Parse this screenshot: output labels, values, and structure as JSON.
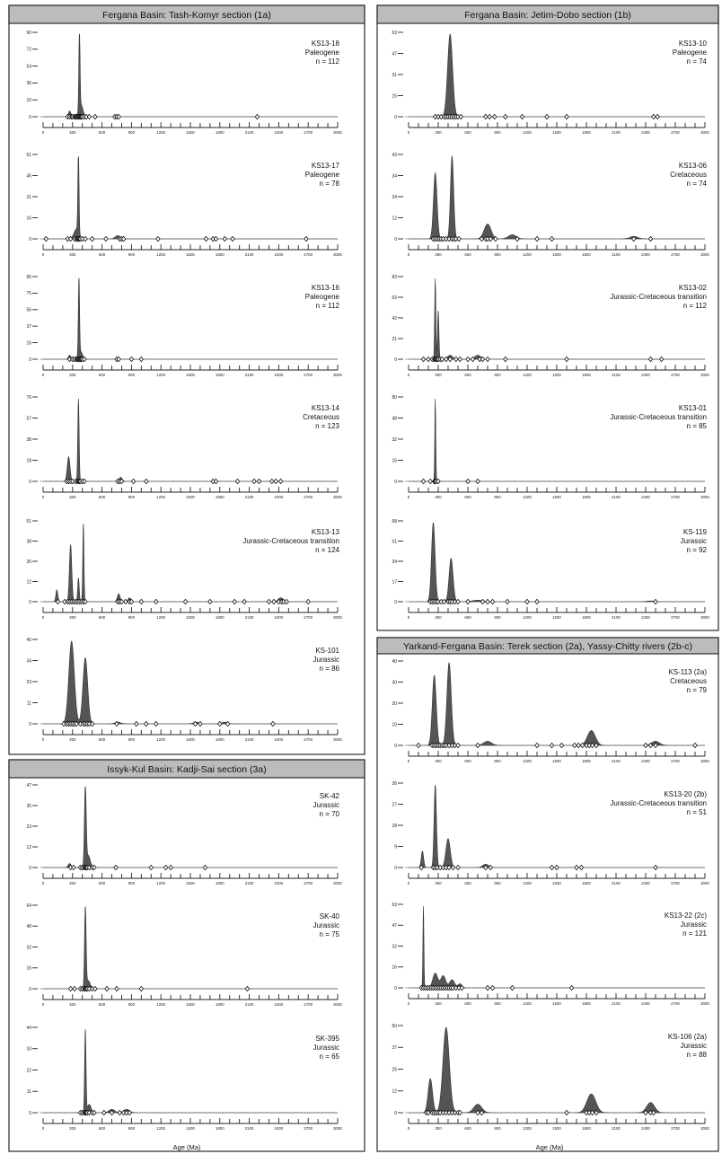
{
  "figure": {
    "groups": [
      {
        "title": "Fergana Basin: Tash-Komyr section (1a)"
      },
      {
        "title": "Fergana Basin: Jetim-Dobo section (1b)"
      },
      {
        "title": "Yarkand-Fergana Basin: Terek section (2a), Yassy-Chitty rivers (2b-c)"
      },
      {
        "title": "Issyk-Kul Basin: Kadji-Sai section (3a)"
      }
    ],
    "x_axis_title": "Age (Ma)"
  },
  "chart_data": [
    {
      "type": "area",
      "sample": "KS13-18",
      "period": "Paleogene",
      "n_label": "n = 112",
      "yticks": [
        "0",
        "16",
        "36",
        "54",
        "72",
        "90"
      ],
      "xlim": [
        0,
        3000
      ],
      "xticks": [
        "0",
        "300",
        "600",
        "900",
        "1200",
        "1500",
        "1800",
        "2100",
        "2400",
        "2700",
        "3000"
      ],
      "peaks": [
        [
          270,
          0.07,
          12
        ],
        [
          370,
          1.0,
          6
        ],
        [
          385,
          0.15,
          20
        ]
      ],
      "ages": [
        250,
        270,
        290,
        300,
        320,
        330,
        340,
        350,
        360,
        370,
        375,
        380,
        390,
        400,
        420,
        440,
        470,
        530,
        730,
        750,
        770,
        2180
      ]
    },
    {
      "type": "area",
      "sample": "KS13-17",
      "period": "Paleogene",
      "n_label": "n = 78",
      "yticks": [
        "0",
        "16",
        "31",
        "45",
        "61"
      ],
      "xlim": [
        0,
        3000
      ],
      "xticks": [
        "0",
        "300",
        "600",
        "900",
        "1200",
        "1500",
        "1800",
        "2100",
        "2400",
        "2700",
        "3000"
      ],
      "peaks": [
        [
          360,
          1.0,
          6
        ],
        [
          340,
          0.12,
          25
        ],
        [
          760,
          0.04,
          25
        ]
      ],
      "ages": [
        30,
        250,
        280,
        320,
        340,
        350,
        360,
        370,
        380,
        400,
        430,
        500,
        640,
        780,
        800,
        820,
        1170,
        1660,
        1730,
        1760,
        1850,
        1930,
        2680
      ]
    },
    {
      "type": "area",
      "sample": "KS13-16",
      "period": "Paleogene",
      "n_label": "n = 112",
      "yticks": [
        "0",
        "16",
        "37",
        "56",
        "75",
        "95"
      ],
      "xlim": [
        0,
        3000
      ],
      "xticks": [
        "0",
        "300",
        "600",
        "900",
        "1200",
        "1500",
        "1800",
        "2100",
        "2400",
        "2700",
        "3000"
      ],
      "peaks": [
        [
          270,
          0.05,
          12
        ],
        [
          365,
          1.0,
          6
        ],
        [
          380,
          0.1,
          20
        ]
      ],
      "ages": [
        270,
        300,
        320,
        340,
        350,
        360,
        370,
        380,
        390,
        400,
        420,
        750,
        770,
        900,
        1000
      ]
    },
    {
      "type": "area",
      "sample": "KS13-14",
      "period": "Cretaceous",
      "n_label": "n = 123",
      "yticks": [
        "0",
        "18",
        "38",
        "57",
        "76"
      ],
      "xlim": [
        0,
        3000
      ],
      "xticks": [
        "0",
        "300",
        "600",
        "900",
        "1200",
        "1500",
        "1800",
        "2100",
        "2400",
        "2700",
        "3000"
      ],
      "peaks": [
        [
          260,
          0.3,
          14
        ],
        [
          360,
          1.0,
          7
        ],
        [
          790,
          0.05,
          15
        ]
      ],
      "ages": [
        240,
        260,
        280,
        300,
        330,
        350,
        360,
        370,
        380,
        400,
        420,
        760,
        780,
        800,
        920,
        1050,
        1730,
        1760,
        1980,
        2150,
        2200,
        2330,
        2370,
        2420
      ]
    },
    {
      "type": "area",
      "sample": "KS13-13",
      "period": "Jurassic-Cretaceous transition",
      "n_label": "n = 124",
      "yticks": [
        "0",
        "12",
        "26",
        "38",
        "51"
      ],
      "xlim": [
        0,
        3000
      ],
      "xticks": [
        "0",
        "300",
        "600",
        "900",
        "1200",
        "1500",
        "1800",
        "2100",
        "2400",
        "2700",
        "3000"
      ],
      "peaks": [
        [
          140,
          0.15,
          10
        ],
        [
          280,
          0.72,
          12
        ],
        [
          360,
          0.3,
          8
        ],
        [
          410,
          1.0,
          6
        ],
        [
          770,
          0.1,
          14
        ],
        [
          880,
          0.05,
          14
        ],
        [
          2420,
          0.05,
          25
        ]
      ],
      "ages": [
        150,
        220,
        250,
        270,
        290,
        310,
        330,
        350,
        370,
        390,
        410,
        430,
        760,
        780,
        800,
        840,
        880,
        900,
        1000,
        1150,
        1450,
        1700,
        1950,
        2050,
        2300,
        2350,
        2400,
        2430,
        2450,
        2480,
        2700
      ]
    },
    {
      "type": "area",
      "sample": "KS-101",
      "period": "Jurassic",
      "n_label": "n = 86",
      "yticks": [
        "0",
        "11",
        "23",
        "34",
        "45"
      ],
      "xlim": [
        0,
        3000
      ],
      "xticks": [
        "0",
        "300",
        "600",
        "900",
        "1200",
        "1500",
        "1800",
        "2100",
        "2400",
        "2700",
        "3000"
      ],
      "peaks": [
        [
          290,
          1.0,
          28
        ],
        [
          430,
          0.8,
          24
        ],
        [
          760,
          0.02,
          30
        ],
        [
          1560,
          0.02,
          30
        ],
        [
          1850,
          0.02,
          30
        ]
      ],
      "ages": [
        210,
        240,
        260,
        280,
        300,
        320,
        340,
        380,
        410,
        430,
        450,
        470,
        500,
        750,
        950,
        1050,
        1150,
        1550,
        1600,
        1800,
        1880,
        2340
      ]
    },
    {
      "type": "area",
      "sample": "KS13-10",
      "period": "Paleogene",
      "n_label": "n = 74",
      "yticks": [
        "0",
        "15",
        "31",
        "47",
        "63"
      ],
      "xlim": [
        0,
        3000
      ],
      "xticks": [
        "0",
        "300",
        "600",
        "900",
        "1200",
        "1500",
        "1800",
        "2100",
        "2400",
        "2700",
        "3000"
      ],
      "peaks": [
        [
          420,
          1.0,
          25
        ]
      ],
      "ages": [
        270,
        300,
        330,
        360,
        380,
        400,
        420,
        440,
        460,
        480,
        500,
        530,
        780,
        820,
        870,
        980,
        1150,
        1400,
        1600,
        2480,
        2520
      ]
    },
    {
      "type": "area",
      "sample": "KS13-06",
      "period": "Cretaceous",
      "n_label": "n = 74",
      "yticks": [
        "0",
        "12",
        "24",
        "34",
        "43"
      ],
      "xlim": [
        0,
        3000
      ],
      "xticks": [
        "0",
        "300",
        "600",
        "900",
        "1200",
        "1500",
        "1800",
        "2100",
        "2400",
        "2700",
        "3000"
      ],
      "peaks": [
        [
          270,
          0.8,
          18
        ],
        [
          440,
          1.0,
          16
        ],
        [
          800,
          0.18,
          35
        ],
        [
          1050,
          0.05,
          40
        ],
        [
          2280,
          0.03,
          40
        ]
      ],
      "ages": [
        250,
        270,
        290,
        310,
        330,
        350,
        380,
        410,
        440,
        460,
        480,
        510,
        740,
        780,
        800,
        830,
        880,
        1100,
        1300,
        1450,
        2280,
        2450
      ]
    },
    {
      "type": "area",
      "sample": "KS13-02",
      "period": "Jurassic-Cretaceous transition",
      "n_label": "n = 112",
      "yticks": [
        "0",
        "21",
        "42",
        "63",
        "83"
      ],
      "xlim": [
        0,
        3000
      ],
      "xticks": [
        "0",
        "300",
        "600",
        "900",
        "1200",
        "1500",
        "1800",
        "2100",
        "2400",
        "2700",
        "3000"
      ],
      "peaks": [
        [
          270,
          1.0,
          6
        ],
        [
          300,
          0.6,
          7
        ],
        [
          420,
          0.05,
          25
        ],
        [
          700,
          0.05,
          30
        ]
      ],
      "ages": [
        150,
        200,
        240,
        260,
        270,
        280,
        290,
        300,
        320,
        340,
        380,
        420,
        480,
        520,
        600,
        650,
        720,
        750,
        800,
        980,
        1600,
        2450,
        2560
      ]
    },
    {
      "type": "area",
      "sample": "KS13-01",
      "period": "Jurassic-Cretaceous transition",
      "n_label": "n = 85",
      "yticks": [
        "0",
        "16",
        "32",
        "48",
        "80"
      ],
      "xlim": [
        0,
        3000
      ],
      "xticks": [
        "0",
        "300",
        "600",
        "900",
        "1200",
        "1500",
        "1800",
        "2100",
        "2400",
        "2700",
        "3000"
      ],
      "peaks": [
        [
          270,
          1.0,
          5
        ]
      ],
      "ages": [
        150,
        220,
        260,
        270,
        280,
        300,
        600,
        700
      ]
    },
    {
      "type": "area",
      "sample": "KS-119",
      "period": "Jurassic",
      "n_label": "n = 92",
      "yticks": [
        "0",
        "17",
        "34",
        "51",
        "68"
      ],
      "xlim": [
        0,
        3000
      ],
      "xticks": [
        "0",
        "300",
        "600",
        "900",
        "1200",
        "1500",
        "1800",
        "2100",
        "2400",
        "2700",
        "3000"
      ],
      "peaks": [
        [
          250,
          1.0,
          18
        ],
        [
          430,
          0.55,
          20
        ],
        [
          700,
          0.02,
          50
        ],
        [
          2450,
          0.01,
          40
        ]
      ],
      "ages": [
        220,
        240,
        260,
        280,
        300,
        330,
        360,
        400,
        420,
        440,
        470,
        500,
        600,
        750,
        800,
        850,
        1000,
        1200,
        1300,
        2500
      ]
    },
    {
      "type": "area",
      "sample": "KS-113 (2a)",
      "period": "Cretaceous",
      "n_label": "n = 79",
      "yticks": [
        "0",
        "10",
        "20",
        "30",
        "40"
      ],
      "xlim": [
        0,
        3000
      ],
      "xticks": [
        "0",
        "300",
        "600",
        "900",
        "1200",
        "1500",
        "1800",
        "2100",
        "2400",
        "2700",
        "3000"
      ],
      "peaks": [
        [
          260,
          0.85,
          20
        ],
        [
          410,
          1.0,
          22
        ],
        [
          800,
          0.05,
          40
        ],
        [
          1850,
          0.18,
          40
        ],
        [
          2500,
          0.05,
          40
        ]
      ],
      "ages": [
        100,
        240,
        260,
        280,
        300,
        320,
        340,
        360,
        380,
        410,
        440,
        470,
        500,
        700,
        1300,
        1450,
        1550,
        1680,
        1720,
        1760,
        1800,
        1830,
        1860,
        1900,
        2400,
        2450,
        2500,
        2900
      ]
    },
    {
      "type": "area",
      "sample": "KS13-20 (2b)",
      "period": "Jurassic-Cretaceous transition",
      "n_label": "n = 51",
      "yticks": [
        "0",
        "9",
        "18",
        "27",
        "36"
      ],
      "xlim": [
        0,
        3000
      ],
      "xticks": [
        "0",
        "300",
        "600",
        "900",
        "1200",
        "1500",
        "1800",
        "2100",
        "2400",
        "2700",
        "3000"
      ],
      "peaks": [
        [
          140,
          0.2,
          12
        ],
        [
          270,
          1.0,
          12
        ],
        [
          400,
          0.35,
          22
        ],
        [
          780,
          0.04,
          30
        ]
      ],
      "ages": [
        130,
        250,
        270,
        290,
        320,
        350,
        380,
        410,
        450,
        500,
        780,
        830,
        1450,
        1500,
        1700,
        1750,
        2500
      ]
    },
    {
      "type": "area",
      "sample": "KS13-22 (2c)",
      "period": "Jurassic",
      "n_label": "n = 121",
      "yticks": [
        "0",
        "16",
        "32",
        "47",
        "63"
      ],
      "xlim": [
        0,
        3000
      ],
      "xticks": [
        "0",
        "300",
        "600",
        "900",
        "1200",
        "1500",
        "1800",
        "2100",
        "2400",
        "2700",
        "3000"
      ],
      "peaks": [
        [
          150,
          1.0,
          5
        ],
        [
          270,
          0.18,
          25
        ],
        [
          350,
          0.15,
          25
        ],
        [
          440,
          0.1,
          25
        ],
        [
          520,
          0.05,
          20
        ]
      ],
      "ages": [
        130,
        150,
        170,
        190,
        210,
        230,
        250,
        270,
        290,
        310,
        330,
        350,
        370,
        390,
        410,
        430,
        450,
        480,
        510,
        540,
        800,
        850,
        1050,
        1650
      ]
    },
    {
      "type": "area",
      "sample": "KS-106 (2a)",
      "period": "Jurassic",
      "n_label": "n = 88",
      "yticks": [
        "0",
        "12",
        "25",
        "37",
        "50"
      ],
      "xlim": [
        0,
        3000
      ],
      "xticks": [
        "0",
        "300",
        "600",
        "900",
        "1200",
        "1500",
        "1800",
        "2100",
        "2400",
        "2700",
        "3000"
      ],
      "peaks": [
        [
          220,
          0.4,
          22
        ],
        [
          380,
          1.0,
          32
        ],
        [
          700,
          0.1,
          40
        ],
        [
          1850,
          0.22,
          45
        ],
        [
          2450,
          0.12,
          40
        ]
      ],
      "ages": [
        180,
        200,
        240,
        260,
        280,
        300,
        320,
        350,
        380,
        410,
        440,
        470,
        500,
        520,
        700,
        740,
        1600,
        1800,
        1830,
        1860,
        1900,
        2400,
        2450,
        2480
      ]
    },
    {
      "type": "area",
      "sample": "SK-42",
      "period": "Jurassic",
      "n_label": "n = 70",
      "yticks": [
        "0",
        "12",
        "23",
        "35",
        "47"
      ],
      "xlim": [
        0,
        3000
      ],
      "xticks": [
        "0",
        "300",
        "600",
        "900",
        "1200",
        "1500",
        "1800",
        "2100",
        "2400",
        "2700",
        "3000"
      ],
      "peaks": [
        [
          270,
          0.05,
          15
        ],
        [
          430,
          1.0,
          9
        ],
        [
          460,
          0.15,
          20
        ]
      ],
      "ages": [
        280,
        310,
        380,
        400,
        420,
        430,
        440,
        450,
        470,
        500,
        520,
        740,
        1100,
        1250,
        1300,
        1650
      ]
    },
    {
      "type": "area",
      "sample": "SK-40",
      "period": "Jurassic",
      "n_label": "n = 75",
      "yticks": [
        "0",
        "16",
        "32",
        "48",
        "64"
      ],
      "xlim": [
        0,
        3000
      ],
      "xticks": [
        "0",
        "300",
        "600",
        "900",
        "1200",
        "1500",
        "1800",
        "2100",
        "2400",
        "2700",
        "3000"
      ],
      "peaks": [
        [
          430,
          1.0,
          8
        ],
        [
          460,
          0.1,
          20
        ]
      ],
      "ages": [
        280,
        320,
        380,
        400,
        420,
        430,
        440,
        450,
        470,
        500,
        530,
        650,
        750,
        1000,
        2080
      ]
    },
    {
      "type": "area",
      "sample": "SK-395",
      "period": "Jurassic",
      "n_label": "n = 65",
      "yticks": [
        "0",
        "11",
        "22",
        "33",
        "44"
      ],
      "xlim": [
        0,
        3000
      ],
      "xticks": [
        "0",
        "300",
        "600",
        "900",
        "1200",
        "1500",
        "1800",
        "2100",
        "2400",
        "2700",
        "3000"
      ],
      "peaks": [
        [
          430,
          1.0,
          7
        ],
        [
          470,
          0.1,
          18
        ],
        [
          700,
          0.04,
          30
        ],
        [
          850,
          0.04,
          30
        ]
      ],
      "ages": [
        380,
        400,
        420,
        430,
        440,
        450,
        470,
        500,
        520,
        620,
        700,
        780,
        820,
        850,
        880
      ]
    }
  ]
}
